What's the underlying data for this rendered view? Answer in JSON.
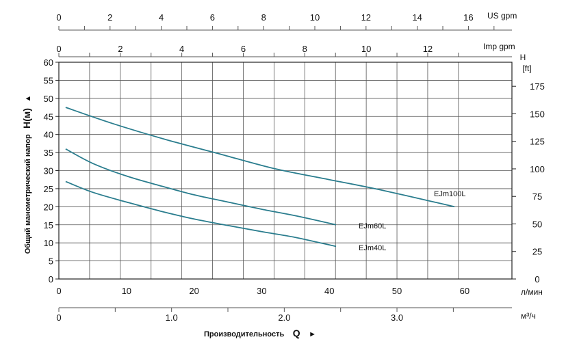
{
  "chart_data": {
    "type": "line",
    "title": "",
    "line_color": "#2a7d8e",
    "grid": true,
    "ylabel": "Общий манометрический напор",
    "ylabel_symbol": "H(м)",
    "xlabel": "Производительность",
    "xlabel_symbol": "Q",
    "arrow_glyph": "▲",
    "arrow_right_glyph": "►",
    "x_lpm": {
      "unit": "л/мин",
      "range": [
        0,
        67
      ],
      "ticks": [
        0,
        10,
        20,
        30,
        40,
        50,
        60
      ],
      "tick_labels": [
        "0",
        "10",
        "20",
        "30",
        "40",
        "50",
        "60"
      ]
    },
    "x_m3h": {
      "unit": "м³/ч",
      "range": [
        0,
        4.02
      ],
      "ticks": [
        0,
        1.0,
        2.0,
        3.0
      ],
      "tick_labels": [
        "0",
        "1.0",
        "2.0",
        "3.0"
      ],
      "minor_ticks": [
        0.5,
        1.5,
        2.5,
        3.5
      ]
    },
    "x_imp": {
      "unit": "Imp gpm",
      "range": [
        0,
        14.74
      ],
      "ticks": [
        0,
        2,
        4,
        6,
        8,
        10,
        12
      ],
      "tick_labels": [
        "0",
        "2",
        "4",
        "6",
        "8",
        "10",
        "12"
      ],
      "minor_ticks": [
        1,
        3,
        5,
        7,
        9,
        11,
        13
      ]
    },
    "x_us": {
      "unit": "US gpm",
      "range": [
        0,
        17.7
      ],
      "ticks": [
        0,
        2,
        4,
        6,
        8,
        10,
        12,
        14,
        16
      ],
      "tick_labels": [
        "0",
        "2",
        "4",
        "6",
        "8",
        "10",
        "12",
        "14",
        "16"
      ],
      "minor_ticks": [
        1,
        3,
        5,
        7,
        9,
        11,
        13,
        15,
        17
      ]
    },
    "y_m": {
      "unit": "H(м)",
      "range": [
        0,
        60
      ],
      "ticks": [
        0,
        5,
        10,
        15,
        20,
        25,
        30,
        35,
        40,
        45,
        50,
        55,
        60
      ],
      "tick_labels": [
        "0",
        "5",
        "10",
        "15",
        "20",
        "25",
        "30",
        "35",
        "40",
        "45",
        "50",
        "55",
        "60"
      ]
    },
    "y_ft": {
      "unit_lines": [
        "H",
        "[ft]"
      ],
      "range": [
        0,
        196.85
      ],
      "ticks": [
        0,
        25,
        50,
        75,
        100,
        125,
        150,
        175
      ],
      "tick_labels": [
        "0",
        "25",
        "50",
        "75",
        "100",
        "125",
        "150",
        "175"
      ]
    },
    "series": [
      {
        "name": "EJm100L",
        "x": [
          1,
          8,
          16,
          24,
          32,
          40,
          48,
          58.5
        ],
        "y": [
          47.5,
          43,
          38.5,
          34.5,
          30.5,
          27.5,
          24.5,
          20
        ]
      },
      {
        "name": "EJm60L",
        "x": [
          1,
          5,
          10,
          15,
          20,
          25,
          30,
          35,
          41
        ],
        "y": [
          36,
          32,
          28.5,
          25.8,
          23.3,
          21.3,
          19.3,
          17.5,
          15
        ]
      },
      {
        "name": "EJm40L",
        "x": [
          1,
          5,
          10,
          15,
          20,
          25,
          30,
          35,
          41
        ],
        "y": [
          27,
          24,
          21.3,
          18.8,
          16.6,
          14.8,
          13.1,
          11.5,
          9
        ]
      }
    ]
  }
}
